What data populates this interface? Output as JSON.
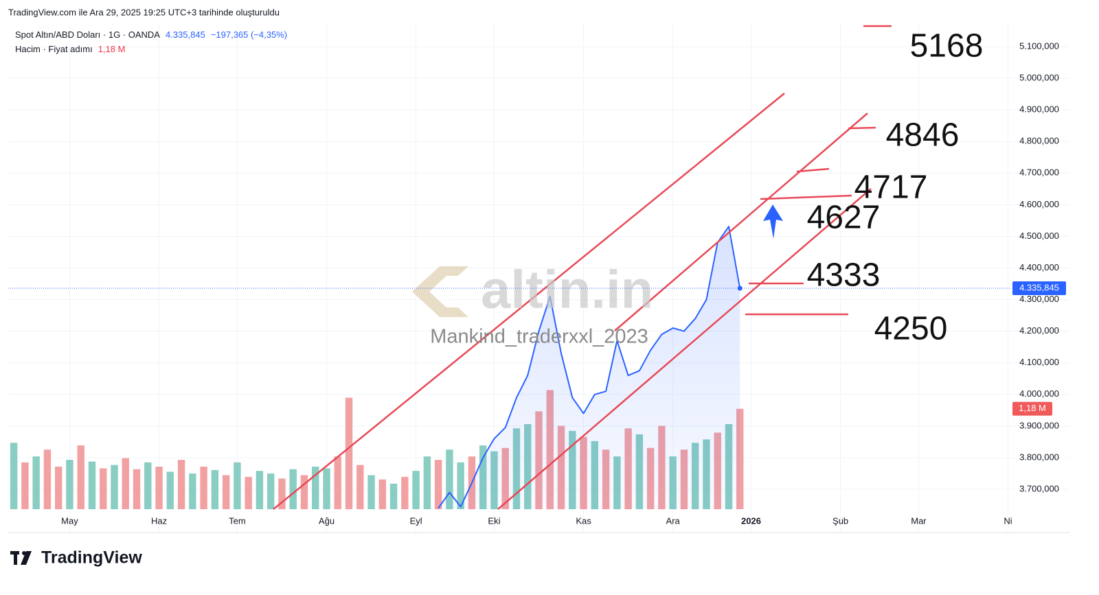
{
  "header": {
    "created": "TradingView.com ile Ara 29, 2025 19:25 UTC+3 tarihinde oluşturuldu",
    "symbol_info": " · 1G · OANDA",
    "change": "−197,365 (−4,35%)",
    "volume_info": " · Fiyat adımı"
  },
  "chart_data": {
    "type": "line",
    "categories": [
      null,
      null,
      null,
      null,
      null,
      "May",
      null,
      null,
      null,
      null,
      null,
      null,
      null,
      "Haz",
      null,
      null,
      null,
      null,
      null,
      null,
      "Tem",
      null,
      null,
      null,
      null,
      null,
      null,
      null,
      "Ağu",
      null,
      null,
      null,
      null,
      null,
      null,
      null,
      "Eyl",
      null,
      null,
      null,
      null,
      null,
      null,
      "Eki",
      null,
      null,
      null,
      null,
      null,
      null,
      null,
      "Kas",
      null,
      null,
      null,
      null,
      null,
      null,
      null,
      "Ara",
      null,
      null,
      null,
      null,
      null,
      null,
      "2026",
      null,
      null,
      null,
      null,
      null,
      null,
      null,
      "Şub",
      null,
      null,
      null,
      null,
      null,
      null,
      "Mar",
      null,
      null,
      null,
      null,
      null,
      null,
      null,
      "Ni",
      null,
      null,
      null,
      null,
      null
    ],
    "series": [
      {
        "name": "Spot Altın/ABD Doları",
        "color": "#2962ff",
        "values": [
          null,
          null,
          null,
          null,
          null,
          null,
          null,
          null,
          null,
          null,
          null,
          null,
          null,
          null,
          null,
          null,
          null,
          null,
          null,
          null,
          null,
          null,
          null,
          null,
          null,
          null,
          null,
          null,
          null,
          null,
          null,
          null,
          null,
          null,
          null,
          null,
          null,
          null,
          3640,
          3690,
          3645,
          3720,
          3800,
          3860,
          3895,
          3990,
          4060,
          4200,
          4310,
          4130,
          3990,
          3940,
          4000,
          4010,
          4170,
          4060,
          4075,
          4140,
          4190,
          4210,
          4200,
          4240,
          4300,
          4480,
          4531,
          4335.845,
          null,
          null,
          null,
          null,
          null,
          null,
          null,
          null,
          null,
          null,
          null,
          null,
          null,
          null,
          null,
          null,
          null,
          null,
          null,
          null,
          null,
          null,
          null,
          null,
          null,
          null,
          null,
          null,
          null
        ]
      },
      {
        "name": "Hacim",
        "type": "bar",
        "axis": "y2",
        "colors": [
          "#89cdc3",
          "#f2a1a3",
          "#89cdc3",
          "#f2a1a3",
          "#f2a1a3",
          "#89cdc3",
          "#f2a1a3",
          "#89cdc3",
          "#f2a1a3",
          "#89cdc3",
          "#f2a1a3",
          "#f2a1a3",
          "#89cdc3",
          "#f2a1a3",
          "#89cdc3",
          "#f2a1a3",
          "#89cdc3",
          "#f2a1a3",
          "#89cdc3",
          "#f2a1a3",
          "#89cdc3",
          "#f2a1a3",
          "#89cdc3",
          "#89cdc3",
          "#f2a1a3",
          "#89cdc3",
          "#f2a1a3",
          "#89cdc3",
          "#89cdc3",
          "#f2a1a3",
          "#f2a1a3",
          "#f2a1a3",
          "#89cdc3",
          "#f2a1a3",
          "#89cdc3",
          "#f2a1a3",
          "#89cdc3",
          "#89cdc3",
          "#f2a1a3",
          "#89cdc3",
          "#89cdc3",
          "#f2a1a3",
          "#89cdc3",
          "#89cdc3",
          "#f2a1a3",
          "#89cdc3",
          "#89cdc3",
          "#f2a1a3",
          "#f2a1a3",
          "#f2a1a3",
          "#89cdc3",
          "#f2a1a3",
          "#89cdc3",
          "#f2a1a3",
          "#89cdc3",
          "#f2a1a3",
          "#89cdc3",
          "#f2a1a3",
          "#f2a1a3",
          "#89cdc3",
          "#f2a1a3",
          "#89cdc3",
          "#89cdc3",
          "#f2a1a3",
          "#89cdc3",
          "#f2a1a3",
          null,
          null,
          null,
          null,
          null,
          null,
          null,
          null,
          null,
          null,
          null,
          null,
          null,
          null,
          null,
          null,
          null,
          null,
          null,
          null,
          null,
          null,
          null,
          null,
          null,
          null,
          null,
          null,
          null
        ],
        "values": [
          0.78,
          0.55,
          0.62,
          0.7,
          0.5,
          0.58,
          0.75,
          0.56,
          0.48,
          0.52,
          0.6,
          0.47,
          0.55,
          0.5,
          0.44,
          0.58,
          0.42,
          0.5,
          0.46,
          0.4,
          0.55,
          0.38,
          0.45,
          0.42,
          0.36,
          0.47,
          0.4,
          0.5,
          0.48,
          0.62,
          1.31,
          0.52,
          0.4,
          0.35,
          0.3,
          0.38,
          0.45,
          0.62,
          0.58,
          0.7,
          0.55,
          0.62,
          0.75,
          0.68,
          0.72,
          0.95,
          1.0,
          1.15,
          1.4,
          0.98,
          0.92,
          0.85,
          0.8,
          0.7,
          0.62,
          0.95,
          0.88,
          0.72,
          0.98,
          0.62,
          0.7,
          0.78,
          0.82,
          0.9,
          1.0,
          1.18,
          null,
          null,
          null,
          null,
          null,
          null,
          null,
          null,
          null,
          null,
          null,
          null,
          null,
          null,
          null,
          null,
          null,
          null,
          null,
          null,
          null,
          null,
          null,
          null,
          null,
          null,
          null,
          null,
          null
        ]
      }
    ],
    "ylim": [
      3637,
      5171.6
    ],
    "yticks": [
      {
        "value": 3700,
        "label": "3.700,000"
      },
      {
        "value": 3800,
        "label": "3.800,000"
      },
      {
        "value": 3900,
        "label": "3.900,000"
      },
      {
        "value": 4000,
        "label": "4.000,000"
      },
      {
        "value": 4100,
        "label": "4.100,000"
      },
      {
        "value": 4200,
        "label": "4.200,000"
      },
      {
        "value": 4300,
        "label": "4.300,000"
      },
      {
        "value": 4400,
        "label": "4.400,000"
      },
      {
        "value": 4500,
        "label": "4.500,000"
      },
      {
        "value": 4600,
        "label": "4.600,000"
      },
      {
        "value": 4700,
        "label": "4.700,000"
      },
      {
        "value": 4800,
        "label": "4.800,000"
      },
      {
        "value": 4900,
        "label": "4.900,000"
      },
      {
        "value": 5000,
        "label": "5.000,000"
      },
      {
        "value": 5100,
        "label": "5.100,000"
      }
    ],
    "y2lim": [
      0,
      5.7
    ],
    "grid": true,
    "last_price": {
      "value": 4335.845,
      "label": "4.335,845"
    },
    "last_volume": {
      "value": 1.18,
      "label": "1,18 M"
    },
    "levels": [
      5168,
      4846,
      4717,
      4627,
      4333,
      4250
    ],
    "watermarks": [
      "altin.in",
      "Mankind_traderxxl_2023"
    ]
  },
  "footer": {
    "brand": "TradingView"
  }
}
